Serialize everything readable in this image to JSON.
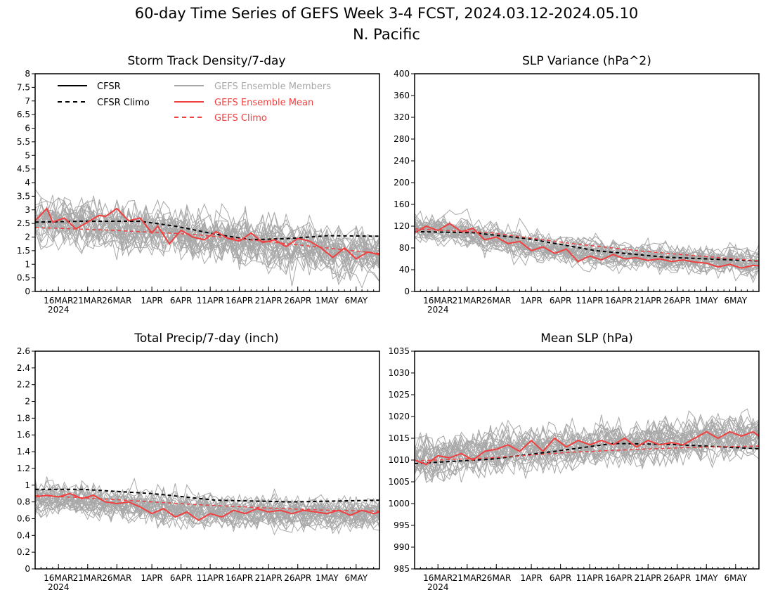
{
  "figure": {
    "title": "60-day Time Series of GEFS Week 3-4 FCST, 2024.03.12-2024.05.10",
    "subtitle": "N. Pacific"
  },
  "colors": {
    "members": "#a8a8a8",
    "ens_mean": "#f04040",
    "gefs_climo": "#f04040",
    "cfsr": "#000000",
    "cfsr_climo": "#000000"
  },
  "legend": [
    {
      "key": "cfsr",
      "label": "CFSR",
      "style": "solid"
    },
    {
      "key": "cfsr_climo",
      "label": "CFSR Climo",
      "style": "dashed"
    },
    {
      "key": "members",
      "label": "GEFS Ensemble Members",
      "style": "solid"
    },
    {
      "key": "ens_mean",
      "label": "GEFS Ensemble Mean",
      "style": "solid"
    },
    {
      "key": "gefs_climo",
      "label": "GEFS Climo",
      "style": "dashed"
    }
  ],
  "x_axis": {
    "start": "2024-03-12",
    "end": "2024-05-10",
    "tick_labels": [
      "16MAR",
      "21MAR",
      "26MAR",
      "1APR",
      "6APR",
      "11APR",
      "16APR",
      "21APR",
      "26APR",
      "1MAY",
      "6MAY"
    ],
    "year_label": "2024"
  },
  "chart_data": [
    {
      "type": "line",
      "title": "Storm Track Density/7-day",
      "ylim": [
        0,
        8
      ],
      "yticks": [
        "0",
        "0.5",
        "1",
        "1.5",
        "2",
        "2.5",
        "3",
        "3.5",
        "4",
        "4.5",
        "5",
        "5.5",
        "6",
        "6.5",
        "7",
        "7.5",
        "8"
      ],
      "grid": false,
      "legend_position": "top",
      "members": {
        "count": 31,
        "center": [
          2.55,
          2.5,
          2.35,
          2.2,
          2.05,
          1.9,
          1.8,
          1.7,
          1.55,
          1.35,
          1.2
        ],
        "spread": 1.0
      },
      "series": [
        {
          "name": "CFSR Climo",
          "x": [
            "2024-03-12",
            "2024-03-20",
            "2024-03-30",
            "2024-04-05",
            "2024-04-12",
            "2024-04-18",
            "2024-04-25",
            "2024-05-01",
            "2024-05-10"
          ],
          "y": [
            2.55,
            2.58,
            2.58,
            2.4,
            2.1,
            1.9,
            1.95,
            2.05,
            2.03
          ]
        },
        {
          "name": "GEFS Climo",
          "x": [
            "2024-03-12",
            "2024-03-25",
            "2024-04-08",
            "2024-04-20",
            "2024-05-01",
            "2024-05-10"
          ],
          "y": [
            2.35,
            2.25,
            2.1,
            1.85,
            1.6,
            1.4
          ]
        },
        {
          "name": "GEFS Ensemble Mean",
          "x": [
            "2024-03-12",
            "2024-03-14",
            "2024-03-15",
            "2024-03-17",
            "2024-03-19",
            "2024-03-21",
            "2024-03-23",
            "2024-03-24",
            "2024-03-26",
            "2024-03-28",
            "2024-03-30",
            "2024-04-01",
            "2024-04-02",
            "2024-04-04",
            "2024-04-06",
            "2024-04-08",
            "2024-04-10",
            "2024-04-12",
            "2024-04-14",
            "2024-04-16",
            "2024-04-18",
            "2024-04-20",
            "2024-04-22",
            "2024-04-24",
            "2024-04-26",
            "2024-04-28",
            "2024-04-30",
            "2024-05-02",
            "2024-05-04",
            "2024-05-06",
            "2024-05-08",
            "2024-05-10"
          ],
          "y": [
            2.6,
            3.05,
            2.55,
            2.7,
            2.3,
            2.55,
            2.8,
            2.75,
            3.05,
            2.6,
            2.7,
            2.15,
            2.4,
            1.75,
            2.25,
            2.0,
            1.9,
            2.2,
            1.95,
            1.85,
            2.15,
            1.8,
            1.9,
            1.65,
            1.95,
            1.85,
            1.6,
            1.25,
            1.6,
            1.2,
            1.45,
            1.35
          ]
        }
      ]
    },
    {
      "type": "line",
      "title": "SLP Variance (hPa^2)",
      "ylim": [
        0,
        400
      ],
      "yticks": [
        "0",
        "40",
        "80",
        "120",
        "160",
        "200",
        "240",
        "280",
        "320",
        "360",
        "400"
      ],
      "grid": false,
      "members": {
        "count": 31,
        "center": [
          118,
          112,
          100,
          88,
          78,
          72,
          68,
          64,
          60,
          56,
          52
        ],
        "spread": 28
      },
      "series": [
        {
          "name": "CFSR Climo",
          "x": [
            "2024-03-12",
            "2024-03-22",
            "2024-04-01",
            "2024-04-12",
            "2024-04-24",
            "2024-05-10"
          ],
          "y": [
            110,
            108,
            96,
            75,
            63,
            56
          ]
        },
        {
          "name": "GEFS Climo",
          "x": [
            "2024-03-12",
            "2024-03-25",
            "2024-04-08",
            "2024-04-20",
            "2024-05-01",
            "2024-05-10"
          ],
          "y": [
            115,
            108,
            88,
            74,
            64,
            56
          ]
        },
        {
          "name": "GEFS Ensemble Mean",
          "x": [
            "2024-03-12",
            "2024-03-14",
            "2024-03-16",
            "2024-03-18",
            "2024-03-20",
            "2024-03-22",
            "2024-03-24",
            "2024-03-26",
            "2024-03-28",
            "2024-03-30",
            "2024-04-01",
            "2024-04-03",
            "2024-04-05",
            "2024-04-07",
            "2024-04-09",
            "2024-04-11",
            "2024-04-13",
            "2024-04-15",
            "2024-04-17",
            "2024-04-19",
            "2024-04-21",
            "2024-04-23",
            "2024-04-25",
            "2024-04-27",
            "2024-04-29",
            "2024-05-01",
            "2024-05-03",
            "2024-05-05",
            "2024-05-07",
            "2024-05-09",
            "2024-05-10"
          ],
          "y": [
            108,
            120,
            112,
            125,
            110,
            116,
            95,
            100,
            88,
            92,
            75,
            82,
            70,
            78,
            55,
            65,
            58,
            68,
            60,
            62,
            57,
            60,
            55,
            58,
            54,
            52,
            45,
            50,
            43,
            48,
            47
          ]
        }
      ]
    },
    {
      "type": "line",
      "title": "Total Precip/7-day (inch)",
      "ylim": [
        0,
        2.6
      ],
      "yticks": [
        "0",
        "0.2",
        "0.4",
        "0.6",
        "0.8",
        "1",
        "1.2",
        "1.4",
        "1.6",
        "1.8",
        "2",
        "2.2",
        "2.4",
        "2.6"
      ],
      "grid": false,
      "members": {
        "count": 31,
        "center": [
          0.85,
          0.84,
          0.8,
          0.76,
          0.73,
          0.71,
          0.7,
          0.69,
          0.68,
          0.67,
          0.66
        ],
        "spread": 0.22
      },
      "series": [
        {
          "name": "CFSR Climo",
          "x": [
            "2024-03-12",
            "2024-03-20",
            "2024-04-01",
            "2024-04-12",
            "2024-04-25",
            "2024-05-10"
          ],
          "y": [
            0.95,
            0.95,
            0.9,
            0.82,
            0.8,
            0.82
          ]
        },
        {
          "name": "GEFS Climo",
          "x": [
            "2024-03-12",
            "2024-03-25",
            "2024-04-08",
            "2024-04-20",
            "2024-05-01",
            "2024-05-10"
          ],
          "y": [
            0.88,
            0.83,
            0.77,
            0.73,
            0.7,
            0.69
          ]
        },
        {
          "name": "GEFS Ensemble Mean",
          "x": [
            "2024-03-12",
            "2024-03-14",
            "2024-03-16",
            "2024-03-18",
            "2024-03-20",
            "2024-03-22",
            "2024-03-24",
            "2024-03-26",
            "2024-03-28",
            "2024-03-30",
            "2024-04-01",
            "2024-04-03",
            "2024-04-05",
            "2024-04-07",
            "2024-04-09",
            "2024-04-11",
            "2024-04-13",
            "2024-04-15",
            "2024-04-17",
            "2024-04-19",
            "2024-04-21",
            "2024-04-23",
            "2024-04-25",
            "2024-04-27",
            "2024-04-29",
            "2024-05-01",
            "2024-05-03",
            "2024-05-05",
            "2024-05-07",
            "2024-05-09",
            "2024-05-10"
          ],
          "y": [
            0.86,
            0.88,
            0.86,
            0.9,
            0.84,
            0.88,
            0.8,
            0.78,
            0.8,
            0.74,
            0.66,
            0.72,
            0.62,
            0.68,
            0.58,
            0.66,
            0.62,
            0.7,
            0.66,
            0.72,
            0.68,
            0.7,
            0.66,
            0.7,
            0.68,
            0.66,
            0.7,
            0.64,
            0.7,
            0.66,
            0.68
          ]
        }
      ]
    },
    {
      "type": "line",
      "title": "Mean SLP (hPa)",
      "ylim": [
        985,
        1035
      ],
      "yticks": [
        "985",
        "990",
        "995",
        "1000",
        "1005",
        "1010",
        "1015",
        "1020",
        "1025",
        "1030",
        "1035"
      ],
      "grid": false,
      "members": {
        "count": 31,
        "center": [
          1009.5,
          1010.5,
          1011.5,
          1012,
          1012.5,
          1013,
          1013.5,
          1014,
          1014.5,
          1015,
          1015.5
        ],
        "spread": 5.5
      },
      "series": [
        {
          "name": "CFSR Climo",
          "x": [
            "2024-03-12",
            "2024-03-25",
            "2024-04-05",
            "2024-04-15",
            "2024-04-25",
            "2024-05-10"
          ],
          "y": [
            1009.2,
            1010.2,
            1012,
            1013.8,
            1013.6,
            1012.6
          ]
        },
        {
          "name": "GEFS Climo",
          "x": [
            "2024-03-12",
            "2024-03-25",
            "2024-04-08",
            "2024-04-20",
            "2024-05-01",
            "2024-05-10"
          ],
          "y": [
            1009.8,
            1010.5,
            1011.8,
            1012.5,
            1013,
            1013.2
          ]
        },
        {
          "name": "GEFS Ensemble Mean",
          "x": [
            "2024-03-12",
            "2024-03-14",
            "2024-03-16",
            "2024-03-18",
            "2024-03-20",
            "2024-03-22",
            "2024-03-24",
            "2024-03-26",
            "2024-03-28",
            "2024-03-30",
            "2024-04-01",
            "2024-04-03",
            "2024-04-05",
            "2024-04-07",
            "2024-04-09",
            "2024-04-11",
            "2024-04-13",
            "2024-04-15",
            "2024-04-17",
            "2024-04-19",
            "2024-04-21",
            "2024-04-23",
            "2024-04-25",
            "2024-04-27",
            "2024-04-29",
            "2024-05-01",
            "2024-05-03",
            "2024-05-05",
            "2024-05-07",
            "2024-05-09",
            "2024-05-10"
          ],
          "y": [
            1010,
            1009,
            1011,
            1010.5,
            1011.5,
            1010,
            1012,
            1012.5,
            1013.5,
            1012,
            1014.5,
            1012,
            1015,
            1013,
            1014.5,
            1013.5,
            1014.5,
            1013.5,
            1015,
            1013,
            1014.5,
            1013.5,
            1014,
            1013.5,
            1015,
            1016.5,
            1015,
            1016.5,
            1015.5,
            1016.5,
            1015.5
          ]
        }
      ]
    }
  ]
}
